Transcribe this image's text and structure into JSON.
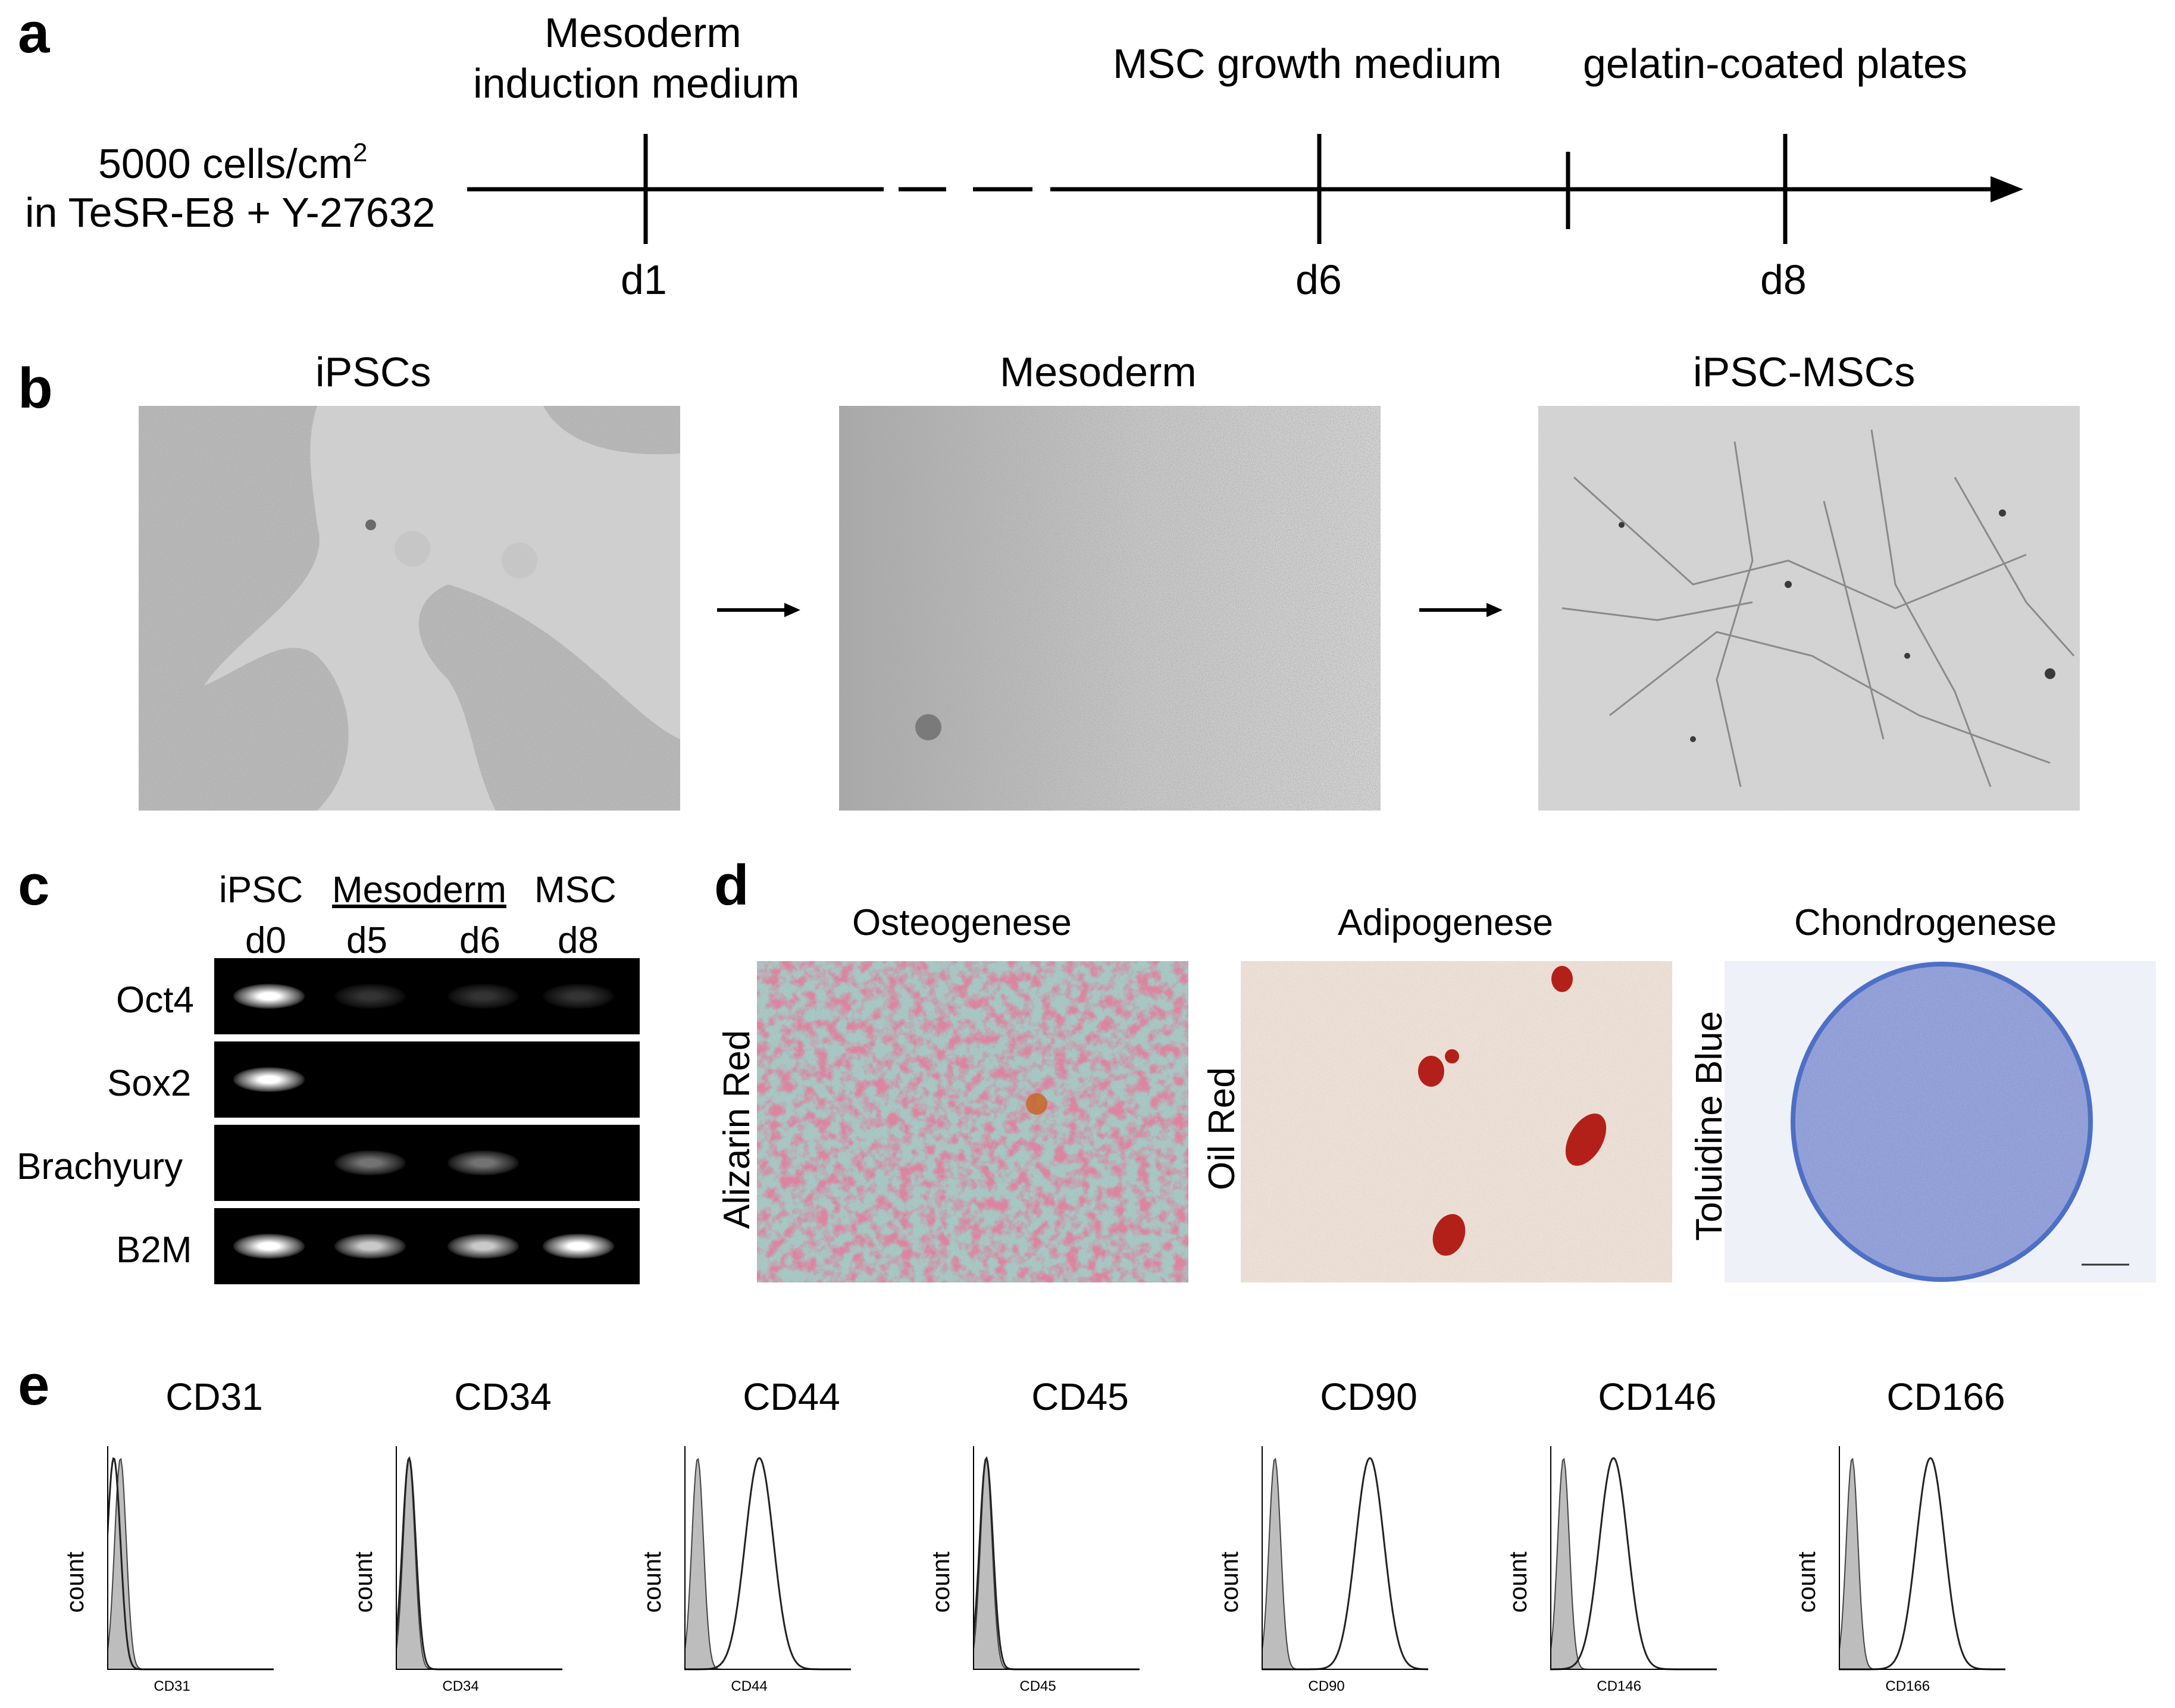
{
  "figure": {
    "panel_letters": {
      "a": "a",
      "b": "b",
      "c": "c",
      "d": "d",
      "e": "e"
    },
    "panel_a": {
      "start_line1": "5000 cells/cm",
      "start_sup": "2",
      "start_line2": "in TeSR-E8 + Y-27632",
      "medium1_line1": "Mesoderm",
      "medium1_line2": "induction medium",
      "medium2": "MSC growth medium",
      "medium3": "gelatin-coated plates",
      "days": [
        "d1",
        "d6",
        "d8"
      ]
    },
    "panel_b": {
      "titles": [
        "iPSCs",
        "Mesoderm",
        "iPSC-MSCs"
      ]
    },
    "panel_c": {
      "header_row1": [
        "iPSC",
        "Mesoderm",
        "MSC"
      ],
      "header_row2": [
        "d0",
        "d5",
        "d6",
        "d8"
      ],
      "genes": [
        "Oct4",
        "Sox2",
        "Brachyury",
        "B2M"
      ],
      "band_intensity": [
        [
          1.0,
          0.05,
          0.05,
          0.05
        ],
        [
          1.0,
          0.0,
          0.0,
          0.0
        ],
        [
          0.0,
          0.35,
          0.35,
          0.0
        ],
        [
          1.0,
          0.75,
          0.75,
          1.0
        ]
      ]
    },
    "panel_d": {
      "titles": [
        "Osteogenese",
        "Adipogenese",
        "Chondrogenese"
      ],
      "stains": [
        "Alizarin Red",
        "Oil Red",
        "Toluidine Blue"
      ],
      "colors": {
        "alizarin": "#b83a5a",
        "oilred": "#b3201a",
        "toluidine": "#5a73c4"
      }
    },
    "panel_e": {
      "markers": [
        "CD31",
        "CD34",
        "CD44",
        "CD45",
        "CD90",
        "CD146",
        "CD166"
      ],
      "ylabel": "count",
      "sample_peak": [
        0.04,
        0.08,
        0.45,
        0.08,
        0.65,
        0.38,
        0.55
      ],
      "control_peak": [
        0.08,
        0.08,
        0.08,
        0.08,
        0.08,
        0.08,
        0.08
      ]
    }
  }
}
